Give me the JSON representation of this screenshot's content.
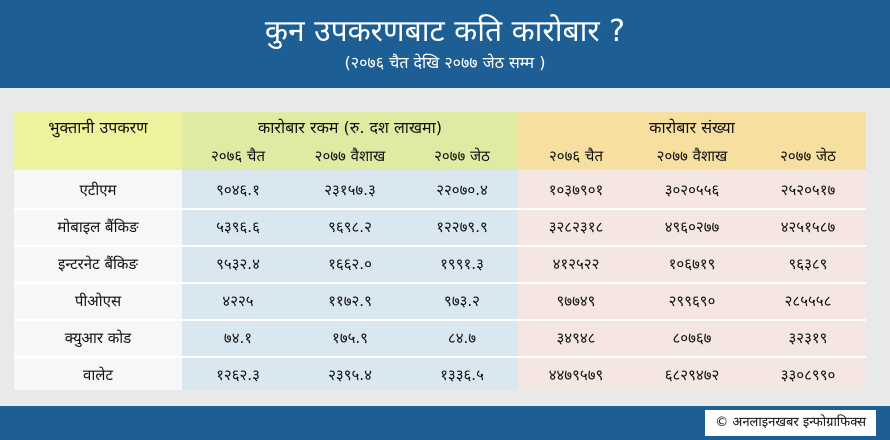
{
  "header": {
    "title": "कुन उपकरणबाट कति कारोबार ?",
    "subtitle": "(२०७६ चैत देखि २०७७ जेठ सम्म )"
  },
  "table": {
    "row_header": "भुक्तानी उपकरण",
    "amount_group": "कारोबार रकम (रु. दश लाखमा)",
    "count_group": "कारोबार संख्या",
    "periods": [
      "२०७६ चैत",
      "२०७७ वैशाख",
      "२०७७ जेठ"
    ],
    "rows": [
      {
        "name": "एटीएम",
        "amount": [
          "९०४६.१",
          "२३१५७.३",
          "२२०७०.४"
        ],
        "count": [
          "१०३७९०१",
          "३०२०५५६",
          "२५२०५१७"
        ]
      },
      {
        "name": "मोबाइल बैंकिङ",
        "amount": [
          "५३९६.६",
          "९६९८.२",
          "१२२७९.९"
        ],
        "count": [
          "३२८२३१८",
          "४९६०२७७",
          "४२५१५८७"
        ]
      },
      {
        "name": "इन्टरनेट बैंकिङ",
        "amount": [
          "९५३२.४",
          "१६६२.०",
          "१९९१.३"
        ],
        "count": [
          "४१२५२२",
          "१०६७१९",
          "९६३८९"
        ]
      },
      {
        "name": "पीओएस",
        "amount": [
          "४२२५",
          "११७२.९",
          "९७३.२"
        ],
        "count": [
          "९७७४९",
          "२९९६९०",
          "२८५५५८"
        ]
      },
      {
        "name": "क्युआर कोड",
        "amount": [
          "७४.१",
          "१७५.९",
          "८४.७"
        ],
        "count": [
          "३४९४८",
          "८०७६७",
          "३२३१९"
        ]
      },
      {
        "name": "वालेट",
        "amount": [
          "१२६२.३",
          "२३९५.४",
          "१३३६.५"
        ],
        "count": [
          "४४७९५७९",
          "६८२९४७२",
          "३३०८९९०"
        ]
      }
    ]
  },
  "footer": {
    "credit": "© अनलाइनखबर इन्फोग्राफिक्स"
  }
}
